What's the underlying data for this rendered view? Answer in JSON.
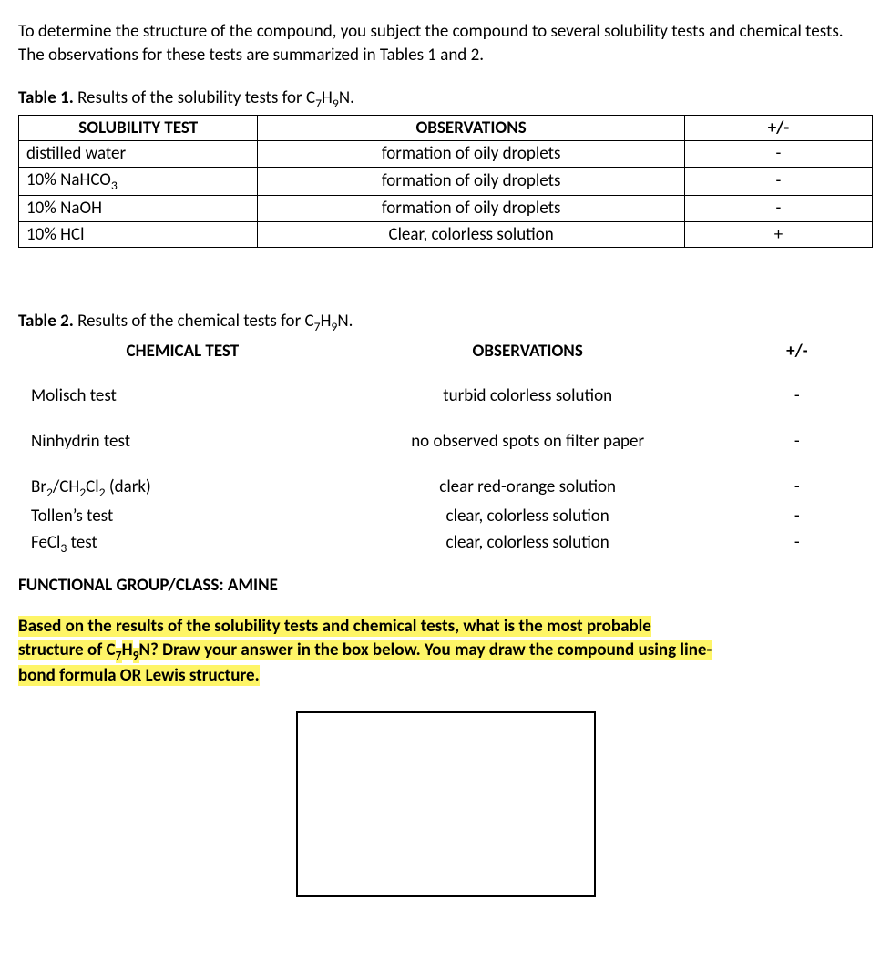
{
  "intro_text": "To determine the structure of the compound, you subject the compound to several solubility tests and chemical tests. The observations for these tests are summarized in Tables 1 and 2.",
  "table1": {
    "caption_bold": "Table 1.",
    "caption_rest": " Results of the solubility tests for C",
    "caption_sub1": "7",
    "caption_mid": "H",
    "caption_sub2": "9",
    "caption_end": "N.",
    "headers": {
      "c1": "SOLUBILITY TEST",
      "c2": "OBSERVATIONS",
      "c3": "+/-"
    },
    "rows": [
      {
        "test": "distilled water",
        "obs": "formation of oily droplets",
        "res": "-"
      },
      {
        "test_pre": "10% NaHCO",
        "test_sub": "3",
        "obs": "formation of oily droplets",
        "res": "-"
      },
      {
        "test": "10% NaOH",
        "obs": "formation of oily droplets",
        "res": "-"
      },
      {
        "test": "10% HCl",
        "obs": "Clear, colorless solution",
        "res": "+"
      }
    ]
  },
  "table2": {
    "caption_bold": "Table 2.",
    "caption_rest": " Results of the chemical tests for C",
    "caption_sub1": "7",
    "caption_mid": "H",
    "caption_sub2": "9",
    "caption_end": "N.",
    "headers": {
      "c1": "CHEMICAL TEST",
      "c2": "OBSERVATIONS",
      "c3": "+/-"
    },
    "rows": [
      {
        "test": "Molisch test",
        "obs": "turbid colorless solution",
        "res": "-",
        "spacer_after": true
      },
      {
        "test": "Ninhydrin test",
        "obs": "no observed spots on filter paper",
        "res": "-",
        "spacer_after": true
      },
      {
        "test_pre": "Br",
        "test_sub1": "2",
        "test_mid": "/CH",
        "test_sub2": "2",
        "test_mid2": "Cl",
        "test_sub3": "2",
        "test_suf": " (dark)",
        "obs": "clear red-orange solution",
        "res": "-"
      },
      {
        "test": "Tollen’s test",
        "obs": "clear, colorless solution",
        "res": "-"
      },
      {
        "test_pre": "FeCl",
        "test_sub1": "3",
        "test_suf": " test",
        "obs": "clear, colorless solution",
        "res": "-"
      }
    ]
  },
  "functional_group_label": "FUNCTIONAL GROUP/CLASS: AMINE",
  "question": {
    "line1_a": "Based on the results of the solubility tests and chemical tests, what is the most probable",
    "line2_a": "structure of C",
    "line2_sub1": "7",
    "line2_b": "H",
    "line2_sub2": "9",
    "line2_c": "N? Draw your answer in the box below. You may draw the compound using line-",
    "line3": "bond formula OR Lewis structure."
  },
  "colors": {
    "highlight_bg": "#fef567",
    "text": "#000000",
    "border": "#000000",
    "page_bg": "#ffffff"
  },
  "typography": {
    "body_fontsize_pt": 14,
    "font_family": "Calibri, Arial, sans-serif"
  }
}
